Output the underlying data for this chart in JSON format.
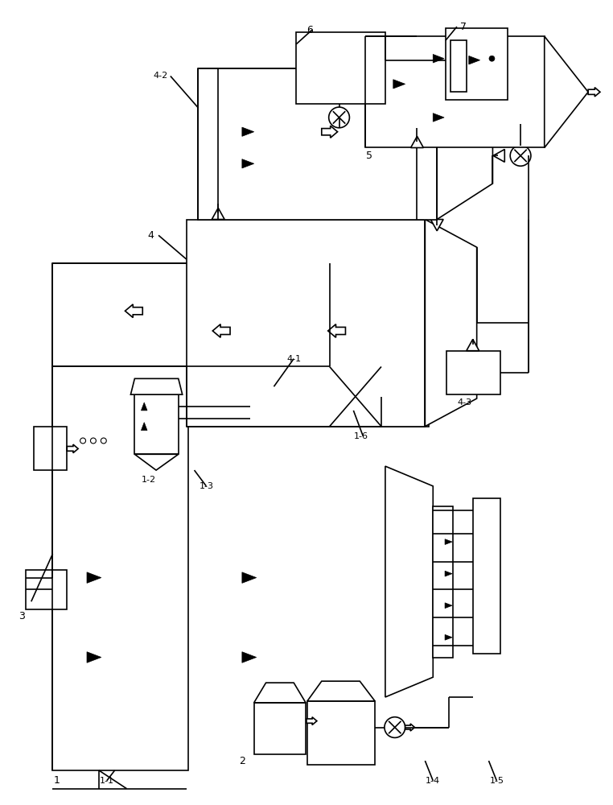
{
  "bg_color": "#ffffff",
  "line_color": "#000000",
  "line_width": 1.2,
  "fig_width": 7.62,
  "fig_height": 10.0
}
